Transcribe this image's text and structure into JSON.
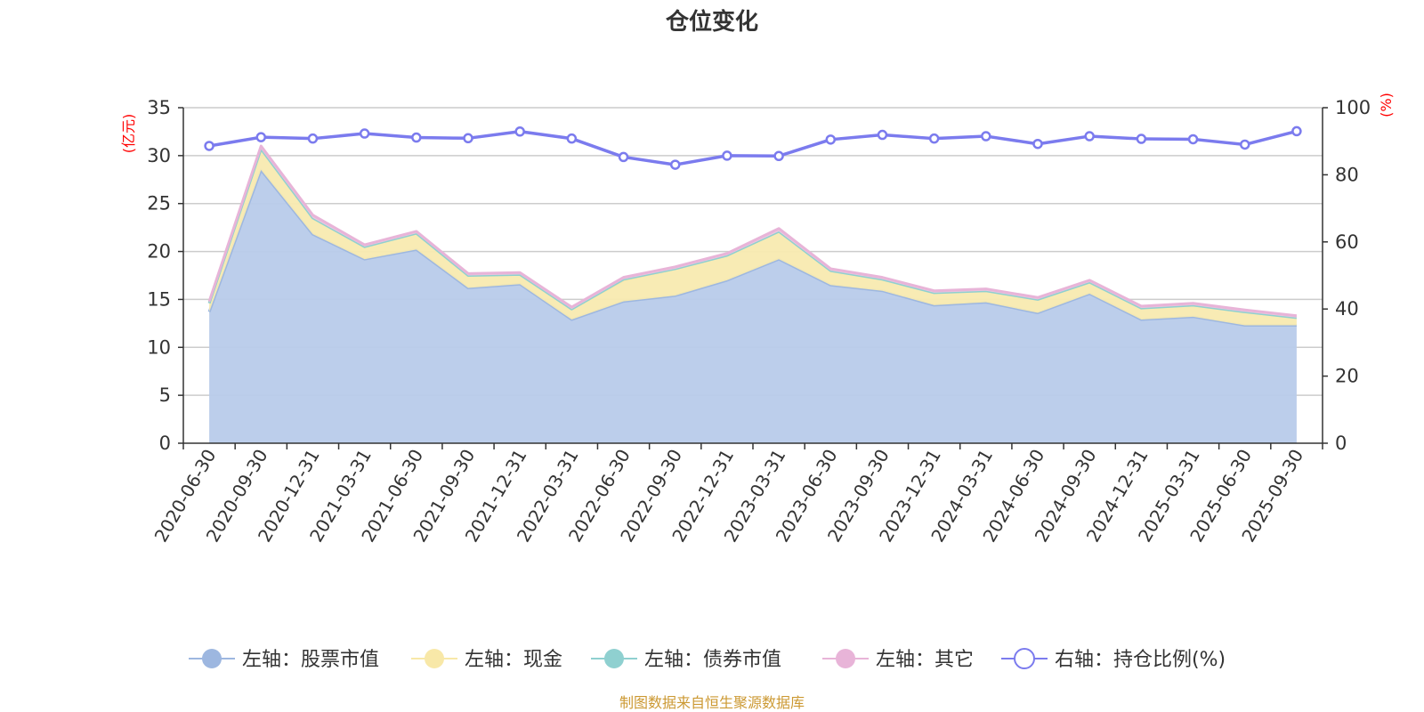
{
  "chart_data": {
    "type": "area",
    "title": "仓位变化",
    "left_unit": "(亿元)",
    "right_unit": "(%)",
    "left_ylim": [
      0,
      35
    ],
    "left_ticks": [
      0,
      5,
      10,
      15,
      20,
      25,
      30,
      35
    ],
    "right_ylim": [
      0,
      100
    ],
    "right_ticks": [
      0,
      20,
      40,
      60,
      80,
      100
    ],
    "categories": [
      "2020-06-30",
      "2020-09-30",
      "2020-12-31",
      "2021-03-31",
      "2021-06-30",
      "2021-09-30",
      "2021-12-31",
      "2022-03-31",
      "2022-06-30",
      "2022-09-30",
      "2022-12-31",
      "2023-03-31",
      "2023-06-30",
      "2023-09-30",
      "2023-12-31",
      "2024-03-31",
      "2024-06-30",
      "2024-09-30",
      "2024-12-31",
      "2025-03-31",
      "2025-06-30",
      "2025-09-30"
    ],
    "stacked_series": [
      {
        "name": "左轴：股票市值",
        "color": "#9db7e0",
        "fill": "#b8cbea",
        "values": [
          13.7,
          28.5,
          21.8,
          19.2,
          20.2,
          16.2,
          16.6,
          12.9,
          14.8,
          15.4,
          17.0,
          19.2,
          16.5,
          15.9,
          14.4,
          14.7,
          13.6,
          15.6,
          12.9,
          13.2,
          12.3,
          12.3
        ]
      },
      {
        "name": "左轴：现金",
        "color": "#f8e8a8",
        "fill": "#f8eab0",
        "values": [
          0.9,
          2.2,
          1.7,
          1.3,
          1.7,
          1.3,
          1.0,
          1.1,
          2.2,
          2.8,
          2.6,
          2.9,
          1.5,
          1.2,
          1.3,
          1.2,
          1.4,
          1.2,
          1.2,
          1.2,
          1.4,
          0.8
        ]
      },
      {
        "name": "左轴：债券市值",
        "color": "#8fd0d0",
        "fill": "#a8dcd8",
        "values": [
          0.0,
          0.0,
          0.0,
          0.0,
          0.0,
          0.0,
          0.0,
          0.0,
          0.1,
          0.0,
          0.0,
          0.0,
          0.0,
          0.0,
          0.0,
          0.0,
          0.0,
          0.0,
          0.0,
          0.0,
          0.0,
          0.0
        ]
      },
      {
        "name": "左轴：其它",
        "color": "#e8b4d8",
        "fill": "#f0c8e0",
        "values": [
          0.2,
          0.3,
          0.3,
          0.2,
          0.2,
          0.2,
          0.2,
          0.2,
          0.2,
          0.2,
          0.2,
          0.3,
          0.2,
          0.2,
          0.2,
          0.2,
          0.2,
          0.2,
          0.2,
          0.2,
          0.2,
          0.2
        ]
      }
    ],
    "line_series": {
      "name": "右轴：持仓比例(%)",
      "color": "#7b7bee",
      "values": [
        88.6,
        91.2,
        90.8,
        92.3,
        91.1,
        90.9,
        92.9,
        90.8,
        85.3,
        83.0,
        85.7,
        85.6,
        90.5,
        91.9,
        90.8,
        91.5,
        89.2,
        91.5,
        90.7,
        90.6,
        89.0,
        93.0
      ]
    },
    "source": "制图数据来自恒生聚源数据库"
  }
}
